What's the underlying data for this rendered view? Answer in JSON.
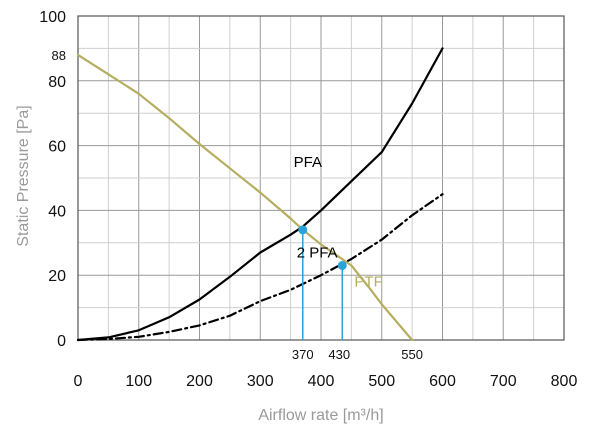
{
  "chart_data": {
    "type": "line",
    "xlabel": "Airflow rate [m³/h]",
    "ylabel": "Static Pressure [Pa]",
    "xlim": [
      0,
      800
    ],
    "ylim": [
      0,
      100
    ],
    "xticks": [
      0,
      100,
      200,
      300,
      400,
      500,
      600,
      700,
      800
    ],
    "yticks": [
      0,
      20,
      40,
      60,
      80,
      100
    ],
    "grid": true,
    "grid_x_spacing": 50,
    "grid_y_spacing": 10,
    "annotations": {
      "y_mark": {
        "value": 88,
        "label": "88"
      },
      "x_marks": [
        {
          "value": 370,
          "label": "370"
        },
        {
          "value": 430,
          "label": "430"
        },
        {
          "value": 550,
          "label": "550"
        }
      ],
      "operating_points": [
        {
          "x": 370,
          "y": 34,
          "color": "#2aa3d8"
        },
        {
          "x": 435,
          "y": 23,
          "color": "#2aa3d8"
        }
      ]
    },
    "series": [
      {
        "name": "PFA",
        "color": "#000000",
        "style": "solid",
        "x": [
          0,
          50,
          100,
          150,
          200,
          250,
          300,
          350,
          370,
          400,
          450,
          500,
          550,
          600
        ],
        "y": [
          0,
          0.8,
          3,
          7,
          12.5,
          19.5,
          27,
          32.5,
          35,
          40,
          49,
          58,
          73,
          90
        ]
      },
      {
        "name": "2 PFA",
        "color": "#000000",
        "style": "dashdot",
        "x": [
          0,
          50,
          100,
          150,
          200,
          250,
          300,
          350,
          400,
          450,
          500,
          550,
          600
        ],
        "y": [
          0,
          0.3,
          1,
          2.5,
          4.5,
          7.5,
          12,
          15.5,
          20,
          25,
          31,
          38.5,
          45
        ]
      },
      {
        "name": "PTF",
        "color": "#b5ad60",
        "style": "solid",
        "x": [
          0,
          50,
          100,
          150,
          200,
          250,
          300,
          350,
          370,
          400,
          450,
          480,
          500,
          550
        ],
        "y": [
          88,
          82,
          76,
          68.5,
          60.5,
          53,
          45.5,
          37.5,
          34,
          29.5,
          23,
          16,
          11,
          0
        ]
      }
    ],
    "series_label_positions": {
      "PFA": [
        355,
        55
      ],
      "2 PFA": [
        360,
        27
      ],
      "PTF": [
        455,
        18
      ]
    }
  }
}
